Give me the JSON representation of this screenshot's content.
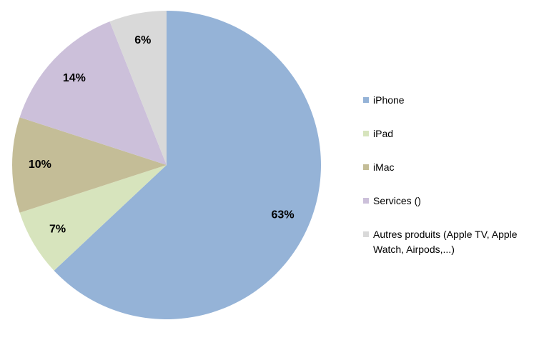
{
  "chart_data": {
    "type": "pie",
    "categories": [
      "iPhone",
      "iPad",
      "iMac",
      "Services ()",
      "Autres produits (Apple TV, Apple Watch, Airpods,...)"
    ],
    "values": [
      63,
      7,
      10,
      14,
      6
    ],
    "value_labels": [
      "63%",
      "7%",
      "10%",
      "14%",
      "6%"
    ],
    "colors": [
      "#95b3d7",
      "#d7e4bd",
      "#c4bd97",
      "#ccc0da",
      "#d9d9d9"
    ],
    "legend": "right"
  }
}
